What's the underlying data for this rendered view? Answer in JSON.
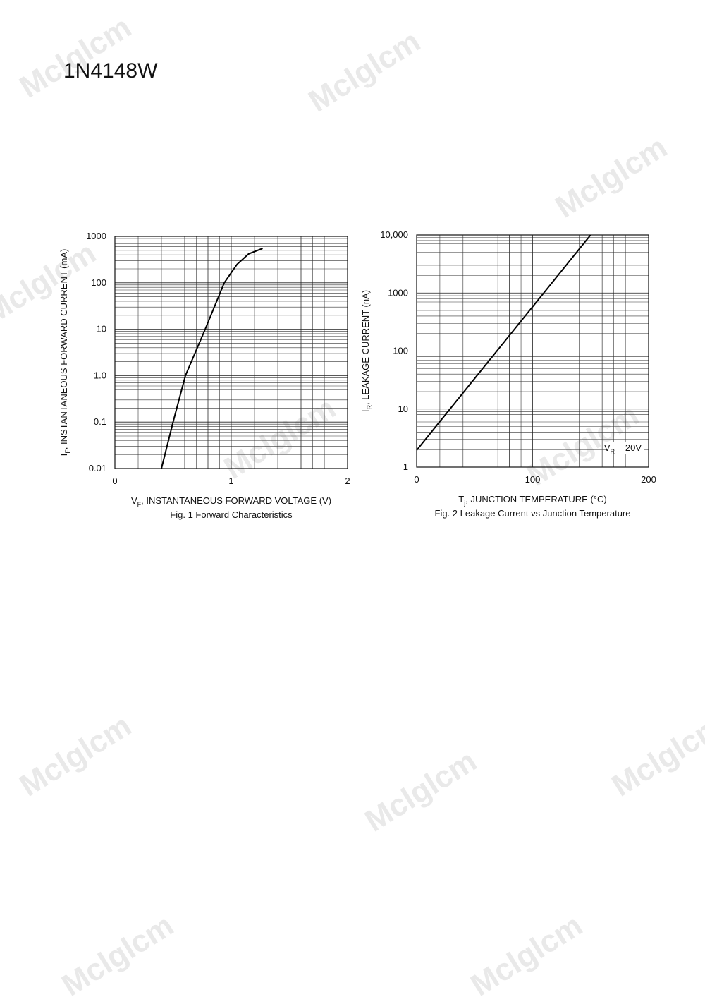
{
  "header": {
    "title": "1N4148W",
    "watermark": "Mclglcm"
  },
  "chart_data": [
    {
      "type": "line",
      "log_y": true,
      "grid": true,
      "x": [
        0.4,
        0.5,
        0.606,
        0.776,
        0.94,
        1.05,
        1.15,
        1.27
      ],
      "series": [
        {
          "name": "IF",
          "color": "#000000",
          "values": [
            0.01,
            0.1,
            1,
            10,
            100,
            250,
            420,
            550
          ]
        }
      ],
      "xlim": [
        0,
        2
      ],
      "xticks": [
        0,
        1,
        2
      ],
      "ylim": [
        0.01,
        1000
      ],
      "yticks": [
        1000,
        100,
        10,
        {
          "value": 1,
          "label": "1.0"
        },
        0.1,
        0.01
      ],
      "xlabel": [
        "V",
        "F",
        ", INSTANTANEOUS FORWARD VOLTAGE (V)"
      ],
      "ylabel": [
        "I",
        "F",
        ", INSTANTANEOUS FORWARD CURRENT (mA)"
      ],
      "caption": "Fig. 1  Forward Characteristics"
    },
    {
      "type": "line",
      "log_y": true,
      "grid": true,
      "x": [
        0,
        150
      ],
      "series": [
        {
          "name": "IR",
          "color": "#000000",
          "values": [
            1.95,
            10000
          ]
        }
      ],
      "xlim": [
        0,
        200
      ],
      "xticks": [
        0,
        100,
        200
      ],
      "ylim": [
        1,
        10000
      ],
      "yticks": [
        {
          "value": 10000,
          "label": "10,000"
        },
        1000,
        100,
        10,
        1
      ],
      "xlabel": [
        "T",
        "j",
        ", JUNCTION TEMPERATURE (°C)"
      ],
      "ylabel": [
        "I",
        "R",
        ", LEAKAGE CURRENT (nA)"
      ],
      "annotation": [
        "V",
        "R",
        " = 20V"
      ],
      "caption": "Fig. 2  Leakage Current vs Junction Temperature"
    }
  ]
}
